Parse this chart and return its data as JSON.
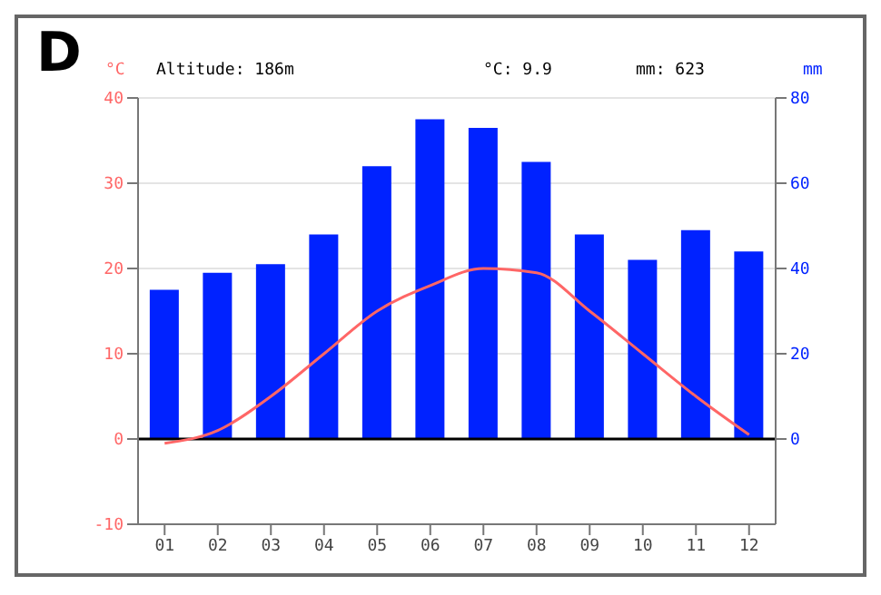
{
  "chart_data": {
    "type": "bar",
    "annotations": [
      "D",
      "Altitude: 186m",
      "°C: 9.9",
      "mm: 623"
    ],
    "ylabel": "°C",
    "y2label": "mm",
    "categories": [
      "01",
      "02",
      "03",
      "04",
      "05",
      "06",
      "07",
      "08",
      "09",
      "10",
      "11",
      "12"
    ],
    "series": [
      {
        "axis": "y2",
        "color": "#0022ff",
        "values": [
          35,
          39,
          41,
          48,
          64,
          75,
          73,
          65,
          48,
          42,
          49,
          44
        ]
      },
      {
        "type": "line",
        "axis": "y",
        "color": "#ff6666",
        "values": [
          -0.5,
          1,
          5,
          10,
          15,
          18,
          20,
          19.5,
          15,
          10,
          5,
          0.5
        ]
      }
    ],
    "ylim": [
      -10,
      40
    ],
    "yticks": [
      -10,
      0,
      10,
      20,
      30,
      40
    ],
    "y2lim": [
      -20,
      80
    ],
    "y2ticks": [
      0,
      20,
      40,
      60,
      80
    ],
    "grid": "y",
    "legend": false,
    "marker": "none",
    "line_style": "solid",
    "ref_lines": [
      {
        "axis": "y",
        "value": 0,
        "color": "#000000"
      }
    ]
  }
}
